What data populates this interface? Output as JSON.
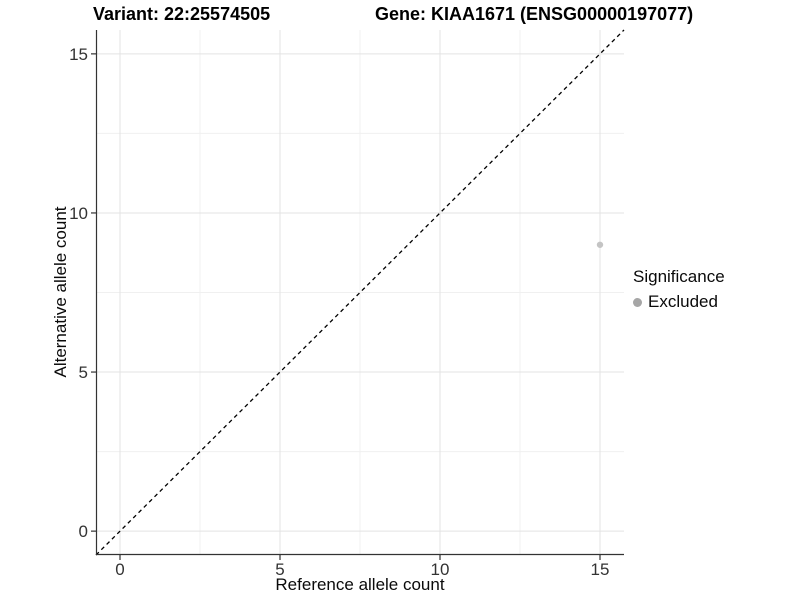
{
  "header": {
    "variant_title": "Variant: 22:25574505",
    "gene_title": "Gene: KIAA1671 (ENSG00000197077)"
  },
  "chart_data": {
    "type": "scatter",
    "title_left": "Variant: 22:25574505",
    "title_right": "Gene: KIAA1671 (ENSG00000197077)",
    "xlabel": "Reference allele count",
    "ylabel": "Alternative allele count",
    "xlim": [
      -0.75,
      15.75
    ],
    "ylim": [
      -0.75,
      15.75
    ],
    "x_major_ticks": [
      0,
      5,
      10,
      15
    ],
    "y_major_ticks": [
      0,
      5,
      10,
      15
    ],
    "x_minor_ticks": [
      2.5,
      7.5,
      12.5
    ],
    "y_minor_ticks": [
      2.5,
      7.5,
      12.5
    ],
    "grid": true,
    "identity_line": {
      "slope": 1,
      "intercept": 0,
      "style": "dashed",
      "color": "#000000"
    },
    "series": [
      {
        "name": "Excluded",
        "color": "#c4c4c4",
        "points": [
          {
            "x": 15,
            "y": 9
          }
        ]
      }
    ],
    "legend": {
      "position": "right",
      "title": "Significance",
      "items": [
        {
          "label": "Excluded",
          "color": "#a6a6a6"
        }
      ]
    },
    "style": {
      "background": "#ffffff",
      "grid_major_color": "#e3e3e3",
      "grid_minor_color": "#f0f0f0",
      "axis_line_color": "#333333",
      "tick_label_color": "#333333",
      "point_radius": 3.2
    }
  }
}
